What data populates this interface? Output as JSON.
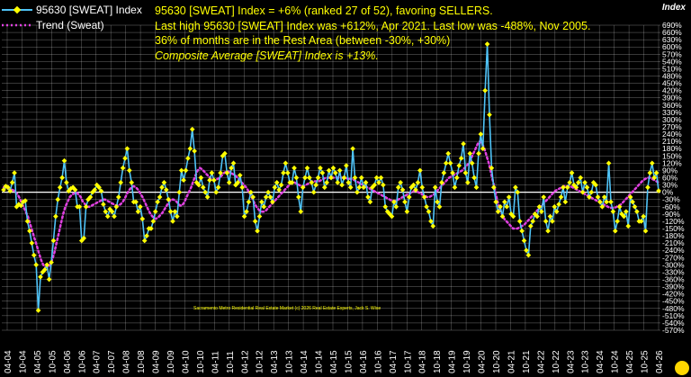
{
  "legend": {
    "index_label": "95630 [SWEAT] Index",
    "trend_label": "Trend (Sweat)"
  },
  "headline": {
    "line1": "95630 [SWEAT] Index = +6% (ranked 27 of 52), favoring SELLERS.",
    "line2": "Last high 95630 [SWEAT] Index was +612%, Apr 2021. Last low was -488%, Nov 2005.",
    "line3": "36% of months are in the Rest Area (between -30%, +30%)",
    "line4": "Composite Average [SWEAT] Index is +13%."
  },
  "axis_title": "Index",
  "footer_note": "Sacramento Metro Residential Real Estate Market  (c) 2026 Real Estate Experts, Jack S. Wise",
  "colors": {
    "background": "#000000",
    "index_line": "#4fc3f7",
    "index_marker": "#ffff00",
    "trend_line": "#e040e0",
    "grid": "#ffffff",
    "headline": "#ffff00"
  },
  "chart_data": {
    "type": "line",
    "title": "95630 [SWEAT] Index = +6% (ranked 27 of 52), favoring SELLERS.",
    "ylabel": "Index",
    "ylim": [
      -570,
      690
    ],
    "y_ticks": [
      690,
      660,
      630,
      600,
      570,
      540,
      510,
      480,
      450,
      420,
      390,
      360,
      330,
      300,
      270,
      240,
      210,
      180,
      150,
      120,
      90,
      60,
      30,
      0,
      -30,
      -60,
      -90,
      -120,
      -150,
      -180,
      -210,
      -240,
      -270,
      -300,
      -330,
      -360,
      -390,
      -420,
      -450,
      -480,
      -510,
      -540,
      -570
    ],
    "y_tick_labels": [
      "690%",
      "660%",
      "630%",
      "600%",
      "570%",
      "540%",
      "510%",
      "480%",
      "450%",
      "420%",
      "390%",
      "360%",
      "330%",
      "300%",
      "270%",
      "240%",
      "210%",
      "180%",
      "150%",
      "120%",
      "90%",
      "60%",
      "30%",
      "0%",
      "-30%",
      "-60%",
      "-90%",
      "-120%",
      "-150%",
      "-180%",
      "-210%",
      "-240%",
      "-270%",
      "-300%",
      "-330%",
      "-360%",
      "-390%",
      "-420%",
      "-450%",
      "-480%",
      "-510%",
      "-540%",
      "-570%"
    ],
    "x_tick_labels": [
      "04-04",
      "10-04",
      "04-05",
      "10-05",
      "04-06",
      "10-06",
      "04-07",
      "10-07",
      "04-08",
      "10-08",
      "04-09",
      "10-09",
      "04-10",
      "10-10",
      "04-11",
      "10-11",
      "04-12",
      "10-12",
      "04-13",
      "10-13",
      "04-14",
      "10-14",
      "04-15",
      "10-15",
      "04-16",
      "10-16",
      "04-17",
      "10-17",
      "04-18",
      "10-18",
      "04-19",
      "10-19",
      "04-20",
      "10-20",
      "04-21",
      "10-21",
      "04-22",
      "10-22",
      "04-23",
      "10-23",
      "04-24",
      "10-24",
      "04-25",
      "10-25",
      "04-26"
    ],
    "grid": true,
    "legend_position": "top-left",
    "series": [
      {
        "name": "95630 [SWEAT] Index",
        "values": [
          10,
          25,
          20,
          5,
          40,
          80,
          -60,
          -50,
          -55,
          -40,
          -35,
          -120,
          -160,
          -210,
          -260,
          -300,
          -488,
          -350,
          -330,
          -320,
          -300,
          -360,
          -290,
          -200,
          -100,
          -30,
          20,
          60,
          130,
          40,
          5,
          15,
          20,
          10,
          -60,
          -60,
          -200,
          -190,
          -60,
          -30,
          -20,
          0,
          10,
          30,
          20,
          5,
          -50,
          -80,
          -100,
          -70,
          -80,
          -100,
          -60,
          -20,
          40,
          100,
          140,
          180,
          90,
          40,
          -40,
          -40,
          -80,
          -60,
          -110,
          -200,
          -180,
          -150,
          -150,
          -120,
          -80,
          -40,
          -20,
          20,
          40,
          10,
          -30,
          -80,
          -120,
          -80,
          -100,
          0,
          90,
          50,
          90,
          140,
          180,
          260,
          170,
          40,
          30,
          60,
          20,
          0,
          -20,
          50,
          80,
          50,
          0,
          20,
          80,
          150,
          160,
          80,
          40,
          100,
          120,
          30,
          40,
          70,
          20,
          -100,
          -80,
          -40,
          0,
          -20,
          -120,
          -160,
          -100,
          -40,
          -60,
          -20,
          0,
          -20,
          -40,
          20,
          40,
          10,
          30,
          80,
          120,
          80,
          40,
          40,
          100,
          60,
          -20,
          -80,
          20,
          60,
          100,
          60,
          40,
          0,
          30,
          60,
          100,
          80,
          20,
          40,
          90,
          60,
          100,
          80,
          40,
          90,
          30,
          60,
          110,
          40,
          20,
          180,
          60,
          0,
          20,
          60,
          20,
          40,
          -20,
          -40,
          20,
          30,
          60,
          40,
          60,
          30,
          -60,
          -80,
          -90,
          -100,
          -40,
          -60,
          20,
          40,
          10,
          -40,
          -80,
          -20,
          20,
          30,
          10,
          40,
          90,
          20,
          -20,
          -60,
          -80,
          -120,
          -140,
          20,
          -40,
          -60,
          40,
          80,
          120,
          160,
          120,
          80,
          20,
          60,
          110,
          140,
          200,
          80,
          40,
          160,
          120,
          60,
          20,
          160,
          240,
          180,
          420,
          612,
          320,
          100,
          20,
          -40,
          -80,
          -60,
          -100,
          -40,
          -60,
          -20,
          -90,
          -100,
          20,
          0,
          -120,
          -160,
          -200,
          -240,
          -260,
          -140,
          -120,
          -90,
          -100,
          -60,
          -80,
          -20,
          -120,
          -160,
          -100,
          -120,
          -60,
          -80,
          -50,
          -20,
          20,
          -40,
          20,
          40,
          80,
          30,
          20,
          40,
          60,
          0,
          40,
          20,
          -20,
          0,
          40,
          30,
          -20,
          -40,
          -60,
          -20,
          -40,
          120,
          -40,
          -80,
          -160,
          -120,
          -60,
          -90,
          -100,
          -80,
          -140,
          -20,
          -40,
          -60,
          -80,
          -120,
          -120,
          -100,
          -160,
          20,
          80,
          120,
          60,
          80,
          6
        ]
      },
      {
        "name": "Trend (Sweat)",
        "values": [
          20,
          18,
          15,
          12,
          10,
          5,
          -5,
          -20,
          -40,
          -60,
          -80,
          -100,
          -130,
          -160,
          -190,
          -220,
          -250,
          -280,
          -300,
          -310,
          -310,
          -300,
          -280,
          -250,
          -210,
          -170,
          -130,
          -90,
          -60,
          -40,
          -20,
          -10,
          -5,
          0,
          -10,
          -20,
          -40,
          -50,
          -60,
          -60,
          -55,
          -50,
          -45,
          -40,
          -35,
          -30,
          -30,
          -35,
          -40,
          -45,
          -50,
          -55,
          -55,
          -50,
          -40,
          -25,
          -5,
          10,
          20,
          25,
          20,
          10,
          -5,
          -20,
          -40,
          -60,
          -80,
          -95,
          -105,
          -110,
          -105,
          -95,
          -85,
          -70,
          -55,
          -40,
          -30,
          -30,
          -35,
          -45,
          -55,
          -55,
          -40,
          -20,
          0,
          20,
          45,
          70,
          90,
          100,
          95,
          85,
          75,
          65,
          55,
          50,
          50,
          55,
          60,
          70,
          80,
          85,
          85,
          80,
          75,
          70,
          60,
          50,
          40,
          30,
          20,
          5,
          -10,
          -30,
          -50,
          -65,
          -75,
          -80,
          -80,
          -75,
          -65,
          -55,
          -45,
          -35,
          -25,
          -15,
          -5,
          5,
          15,
          25,
          35,
          40,
          40,
          35,
          30,
          25,
          25,
          30,
          35,
          40,
          45,
          45,
          45,
          45,
          50,
          55,
          60,
          60,
          60,
          60,
          60,
          60,
          60,
          60,
          60,
          60,
          55,
          55,
          55,
          50,
          45,
          40,
          35,
          30,
          25,
          20,
          15,
          10,
          5,
          0,
          -5,
          -10,
          -15,
          -20,
          -25,
          -30,
          -35,
          -35,
          -35,
          -30,
          -25,
          -20,
          -15,
          -10,
          -5,
          0,
          5,
          5,
          0,
          -5,
          -10,
          -15,
          -20,
          -20,
          -15,
          -10,
          0,
          10,
          20,
          30,
          40,
          50,
          60,
          65,
          70,
          75,
          80,
          85,
          90,
          100,
          110,
          120,
          140,
          160,
          180,
          200,
          210,
          200,
          180,
          150,
          120,
          80,
          40,
          0,
          -40,
          -70,
          -90,
          -110,
          -120,
          -130,
          -140,
          -150,
          -150,
          -150,
          -145,
          -140,
          -135,
          -125,
          -115,
          -105,
          -95,
          -85,
          -75,
          -65,
          -55,
          -45,
          -35,
          -25,
          -15,
          -5,
          5,
          10,
          15,
          20,
          25,
          25,
          25,
          25,
          20,
          15,
          10,
          5,
          0,
          -5,
          -10,
          -15,
          -20,
          -25,
          -30,
          -35,
          -40,
          -45,
          -50,
          -55,
          -60,
          -65,
          -65,
          -65,
          -60,
          -55,
          -50,
          -40,
          -30,
          -20,
          -10,
          0,
          10,
          20,
          30,
          40,
          50,
          55,
          60,
          60,
          55,
          50,
          45,
          40
        ]
      }
    ]
  }
}
